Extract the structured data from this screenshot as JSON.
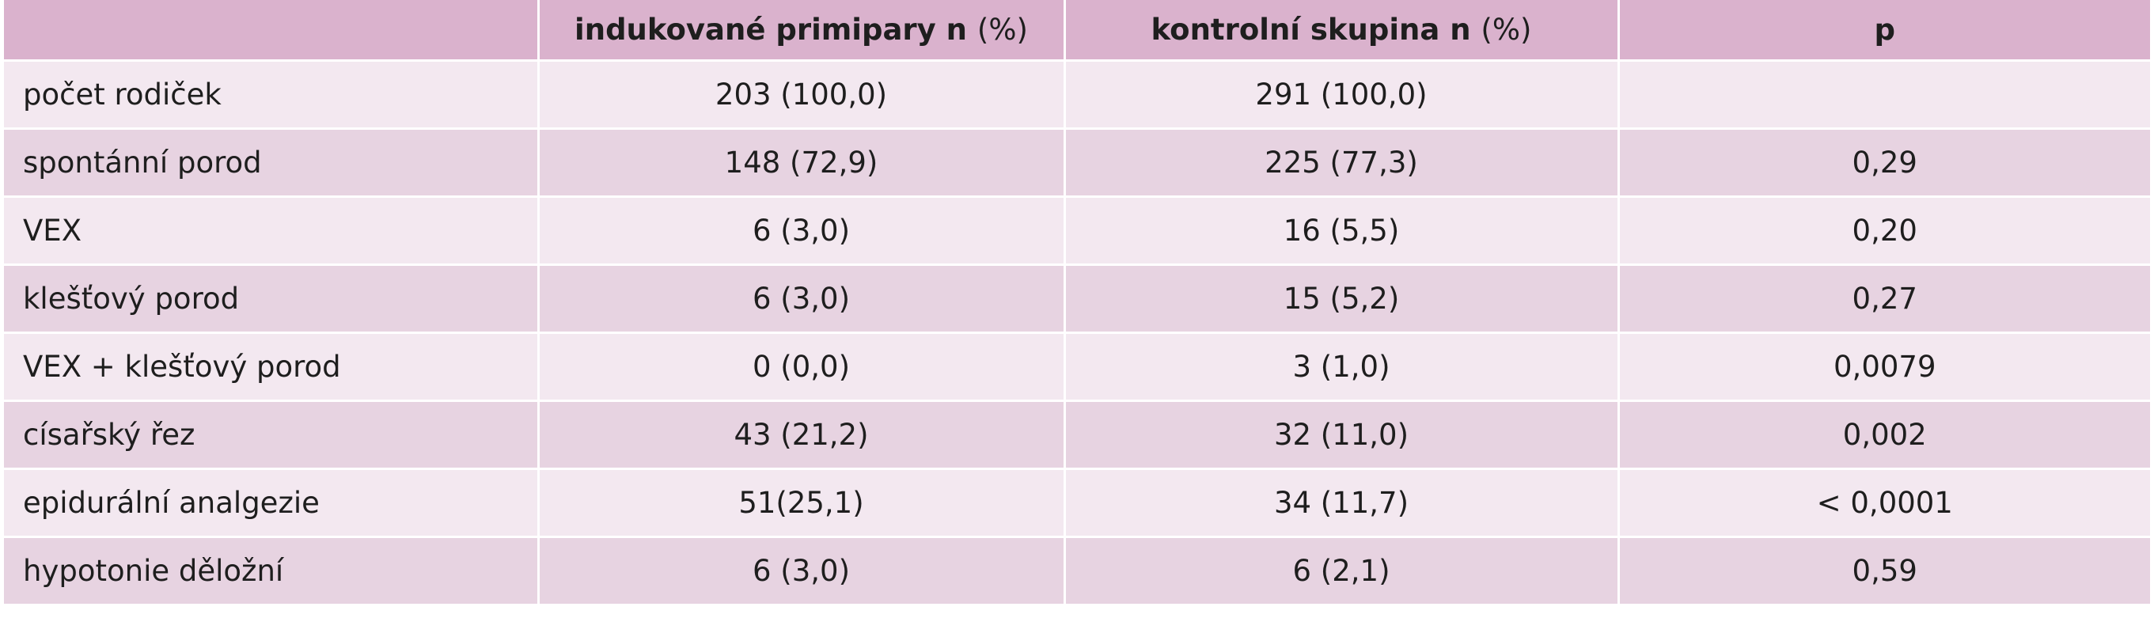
{
  "table": {
    "headers": {
      "col0": "",
      "col1_bold": "indukované primipary n",
      "col1_rest": "(%)",
      "col2_bold": "kontrolní skupina n",
      "col2_rest": "(%)",
      "col3": "p"
    },
    "rows": [
      {
        "label": "počet rodiček",
        "induced": "203 (100,0)",
        "control": "291 (100,0)",
        "p": ""
      },
      {
        "label": "spontánní porod",
        "induced": "148 (72,9)",
        "control": "225 (77,3)",
        "p": "0,29"
      },
      {
        "label": "VEX",
        "induced": "6 (3,0)",
        "control": "16 (5,5)",
        "p": "0,20"
      },
      {
        "label": "klešťový porod",
        "induced": "6 (3,0)",
        "control": "15 (5,2)",
        "p": "0,27"
      },
      {
        "label": "VEX + klešťový porod",
        "induced": "0 (0,0)",
        "control": "3 (1,0)",
        "p": "0,0079"
      },
      {
        "label": "císařský řez",
        "induced": "43 (21,2)",
        "control": "32 (11,0)",
        "p": "0,002"
      },
      {
        "label": "epidurální analgezie",
        "induced": "51(25,1)",
        "control": "34 (11,7)",
        "p": "< 0,0001"
      },
      {
        "label": "hypotonie děložní",
        "induced": "6 (3,0)",
        "control": "6 (2,1)",
        "p": "0,59"
      }
    ]
  },
  "colors": {
    "header_bg": "#dab2cd",
    "row_light": "#f3e8f0",
    "row_dark": "#e7d3e1"
  }
}
